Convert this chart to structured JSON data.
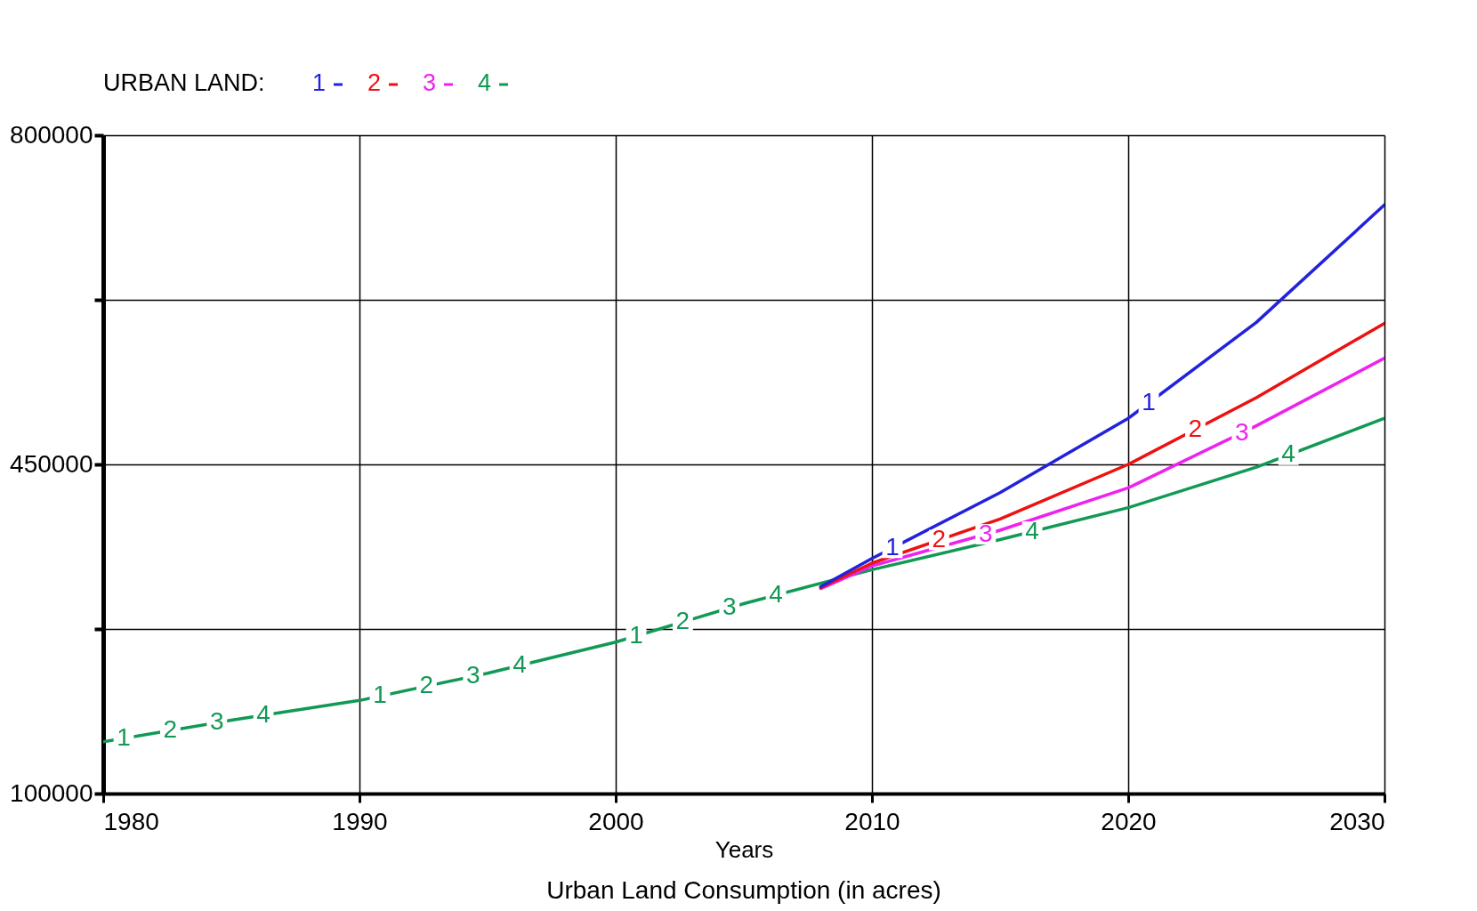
{
  "chart_data": {
    "type": "line",
    "title": "Urban Land Consumption (in acres)",
    "xlabel": "Years",
    "legend_title": "URBAN LAND:",
    "x": [
      1980,
      1985,
      1990,
      1995,
      2000,
      2005,
      2010,
      2015,
      2020,
      2025,
      2030
    ],
    "series": [
      {
        "name": "1",
        "color": "#2222dd",
        "x": [
          2008,
          2010,
          2015,
          2020,
          2025,
          2030
        ],
        "values": [
          320000,
          350000,
          420000,
          499000,
          601000,
          726000
        ]
      },
      {
        "name": "2",
        "color": "#ee1111",
        "x": [
          2008,
          2010,
          2015,
          2020,
          2025,
          2030
        ],
        "values": [
          319000,
          345000,
          392000,
          450000,
          521000,
          600000
        ]
      },
      {
        "name": "3",
        "color": "#ee22ee",
        "x": [
          2008,
          2010,
          2015,
          2020,
          2025,
          2030
        ],
        "values": [
          318000,
          342000,
          380000,
          425000,
          491000,
          563000
        ]
      },
      {
        "name": "4",
        "color": "#119955",
        "values": [
          155000,
          178000,
          199000,
          228000,
          261000,
          302000,
          338000,
          370000,
          404000,
          447000,
          499000
        ]
      }
    ],
    "xlim": [
      1980,
      2030
    ],
    "xticks": [
      1980,
      1990,
      2000,
      2010,
      2020,
      2030
    ],
    "ylim": [
      100000,
      800000
    ],
    "yticks": [
      100000,
      {
        "value": 275000,
        "label": null
      },
      450000,
      {
        "value": 625000,
        "label": null
      },
      800000
    ],
    "grid": true,
    "legend": "top left",
    "marker": "none",
    "line_style": "solid"
  }
}
